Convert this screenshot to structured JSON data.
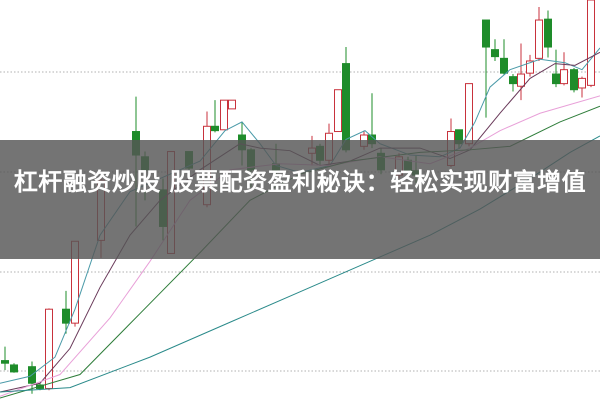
{
  "title": "杠杆融资炒股 股票配资盈利秘诀：轻松实现财富增值",
  "colors": {
    "up_candle": "#c8323c",
    "down_candle": "#1e8c2a",
    "ma_short": "#4a9aa8",
    "ma_mid": "#6a3a5a",
    "ma_pink": "#e8a0d8",
    "ma_green": "#2e7d3a",
    "ma_long": "#2a8a8a",
    "grid": "#b0b0b0",
    "overlay": "#555555"
  }
}
